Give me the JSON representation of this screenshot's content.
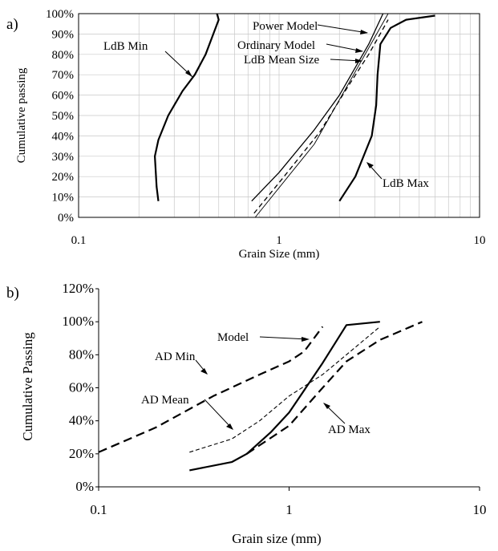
{
  "chart_data": [
    {
      "panel_label": "a)",
      "type": "line",
      "xscale": "log",
      "xlim": [
        0.1,
        10
      ],
      "ylim": [
        0,
        100
      ],
      "xlabel": "Grain Size (mm)",
      "ylabel": "Cumulative passing",
      "xticks": [
        "0.1",
        "1",
        "10"
      ],
      "yticks": [
        "0%",
        "10%",
        "20%",
        "30%",
        "40%",
        "50%",
        "60%",
        "70%",
        "80%",
        "90%",
        "100%"
      ],
      "grid": true,
      "series": [
        {
          "name": "LdB Min",
          "style": "thick-solid",
          "points": [
            [
              0.25,
              8
            ],
            [
              0.245,
              15
            ],
            [
              0.24,
              30
            ],
            [
              0.25,
              38
            ],
            [
              0.28,
              50
            ],
            [
              0.33,
              62
            ],
            [
              0.38,
              70
            ],
            [
              0.43,
              80
            ],
            [
              0.47,
              90
            ],
            [
              0.5,
              97
            ],
            [
              0.49,
              100
            ]
          ]
        },
        {
          "name": "Power Model",
          "style": "thin-solid",
          "points": [
            [
              0.76,
              0
            ],
            [
              1.5,
              36
            ],
            [
              3.5,
              100
            ]
          ]
        },
        {
          "name": "Ordinary Model",
          "style": "solid",
          "points": [
            [
              0.73,
              8
            ],
            [
              1.0,
              22
            ],
            [
              1.5,
              43
            ],
            [
              2.0,
              60
            ],
            [
              2.8,
              85
            ],
            [
              3.3,
              100
            ]
          ]
        },
        {
          "name": "LdB Mean Size",
          "style": "dashed",
          "points": [
            [
              0.75,
              2
            ],
            [
              1.0,
              17
            ],
            [
              1.6,
              42
            ],
            [
              2.2,
              64
            ],
            [
              2.8,
              80
            ],
            [
              3.5,
              97
            ]
          ]
        },
        {
          "name": "LdB Max",
          "style": "thick-solid",
          "points": [
            [
              2.0,
              8
            ],
            [
              2.4,
              20
            ],
            [
              2.9,
              40
            ],
            [
              3.05,
              55
            ],
            [
              3.1,
              70
            ],
            [
              3.2,
              85
            ],
            [
              3.6,
              93
            ],
            [
              4.3,
              97
            ],
            [
              6.0,
              99
            ]
          ]
        }
      ],
      "annotations": [
        "LdB Min",
        "Power Model",
        "Ordinary Model",
        "LdB Mean Size",
        "LdB Max"
      ]
    },
    {
      "panel_label": "b)",
      "type": "line",
      "xscale": "log",
      "xlim": [
        0.1,
        10
      ],
      "ylim": [
        0,
        120
      ],
      "xlabel": "Grain size (mm)",
      "ylabel": "Cumulative Passing",
      "xticks": [
        "0.1",
        "1",
        "10"
      ],
      "yticks": [
        "0%",
        "20%",
        "40%",
        "60%",
        "80%",
        "100%",
        "120%"
      ],
      "grid": false,
      "series": [
        {
          "name": "AD Min",
          "style": "thick-dashed",
          "points": [
            [
              0.1,
              21
            ],
            [
              0.2,
              36
            ],
            [
              0.4,
              55
            ],
            [
              0.7,
              68
            ],
            [
              1.0,
              76
            ],
            [
              1.2,
              82
            ],
            [
              1.5,
              97
            ]
          ]
        },
        {
          "name": "AD Mean",
          "style": "thin-dashed",
          "points": [
            [
              0.3,
              21
            ],
            [
              0.5,
              29
            ],
            [
              0.7,
              40
            ],
            [
              1.0,
              55
            ],
            [
              1.5,
              68
            ],
            [
              2.0,
              80
            ],
            [
              3.0,
              97
            ]
          ]
        },
        {
          "name": "Model",
          "style": "thick-solid",
          "points": [
            [
              0.3,
              10
            ],
            [
              0.5,
              15
            ],
            [
              0.6,
              20
            ],
            [
              0.8,
              33
            ],
            [
              1.0,
              45
            ],
            [
              1.5,
              75
            ],
            [
              2.0,
              98
            ],
            [
              3.0,
              100
            ]
          ]
        },
        {
          "name": "AD Max",
          "style": "thick-dashed",
          "points": [
            [
              0.6,
              20
            ],
            [
              1.0,
              37
            ],
            [
              1.5,
              60
            ],
            [
              2.0,
              76
            ],
            [
              3.0,
              89
            ],
            [
              5.0,
              100
            ]
          ]
        }
      ],
      "annotations": [
        "Model",
        "AD Min",
        "AD Mean",
        "AD Max"
      ]
    }
  ]
}
